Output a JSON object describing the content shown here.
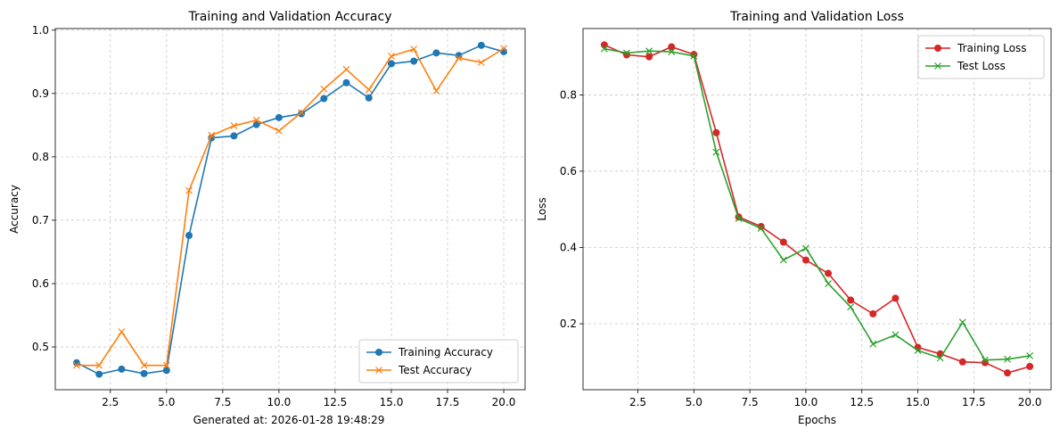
{
  "footer_text": "Generated at: 2026-01-28 19:48:29",
  "chart_data": [
    {
      "type": "line",
      "title": "Training and Validation Accuracy",
      "xlabel": "",
      "ylabel": "Accuracy",
      "xlim": [
        0.05,
        20.95
      ],
      "ylim": [
        0.4325,
        1.0025
      ],
      "x_ticks": [
        2.5,
        5.0,
        7.5,
        10.0,
        12.5,
        15.0,
        17.5,
        20.0
      ],
      "x_tick_labels": [
        "2.5",
        "5.0",
        "7.5",
        "10.0",
        "12.5",
        "15.0",
        "17.5",
        "20.0"
      ],
      "y_ticks": [
        0.5,
        0.6,
        0.7,
        0.8,
        0.9,
        1.0
      ],
      "y_tick_labels": [
        "0.5",
        "0.6",
        "0.7",
        "0.8",
        "0.9",
        "1.0"
      ],
      "grid": true,
      "legend_position": "lower-right",
      "x": [
        1,
        2,
        3,
        4,
        5,
        6,
        7,
        8,
        9,
        10,
        11,
        12,
        13,
        14,
        15,
        16,
        17,
        18,
        19,
        20
      ],
      "series": [
        {
          "name": "Training Accuracy",
          "color": "#1f77b4",
          "marker": "circle",
          "values": [
            0.475,
            0.457,
            0.465,
            0.458,
            0.463,
            0.676,
            0.83,
            0.833,
            0.851,
            0.862,
            0.868,
            0.892,
            0.917,
            0.893,
            0.947,
            0.951,
            0.964,
            0.96,
            0.976,
            0.966
          ]
        },
        {
          "name": "Test Accuracy",
          "color": "#ff7f0e",
          "marker": "x",
          "values": [
            0.471,
            0.471,
            0.524,
            0.471,
            0.471,
            0.747,
            0.834,
            0.849,
            0.858,
            0.841,
            0.87,
            0.907,
            0.938,
            0.906,
            0.959,
            0.97,
            0.904,
            0.956,
            0.949,
            0.971
          ]
        }
      ]
    },
    {
      "type": "line",
      "title": "Training and Validation Loss",
      "xlabel": "Epochs",
      "ylabel": "Loss",
      "xlim": [
        0.05,
        20.95
      ],
      "ylim": [
        0.027,
        0.974
      ],
      "x_ticks": [
        2.5,
        5.0,
        7.5,
        10.0,
        12.5,
        15.0,
        17.5,
        20.0
      ],
      "x_tick_labels": [
        "2.5",
        "5.0",
        "7.5",
        "10.0",
        "12.5",
        "15.0",
        "17.5",
        "20.0"
      ],
      "y_ticks": [
        0.2,
        0.4,
        0.6,
        0.8
      ],
      "y_tick_labels": [
        "0.2",
        "0.4",
        "0.6",
        "0.8"
      ],
      "grid": true,
      "legend_position": "upper-right",
      "x": [
        1,
        2,
        3,
        4,
        5,
        6,
        7,
        8,
        9,
        10,
        11,
        12,
        13,
        14,
        15,
        16,
        17,
        18,
        19,
        20
      ],
      "series": [
        {
          "name": "Training Loss",
          "color": "#d62728",
          "marker": "circle",
          "values": [
            0.931,
            0.905,
            0.9,
            0.926,
            0.906,
            0.701,
            0.48,
            0.455,
            0.414,
            0.367,
            0.332,
            0.262,
            0.226,
            0.267,
            0.138,
            0.121,
            0.1,
            0.098,
            0.071,
            0.088
          ]
        },
        {
          "name": "Test Loss",
          "color": "#2ca02c",
          "marker": "x",
          "values": [
            0.921,
            0.91,
            0.915,
            0.913,
            0.902,
            0.65,
            0.476,
            0.45,
            0.367,
            0.398,
            0.305,
            0.244,
            0.147,
            0.171,
            0.13,
            0.11,
            0.204,
            0.105,
            0.107,
            0.116
          ]
        }
      ]
    }
  ]
}
